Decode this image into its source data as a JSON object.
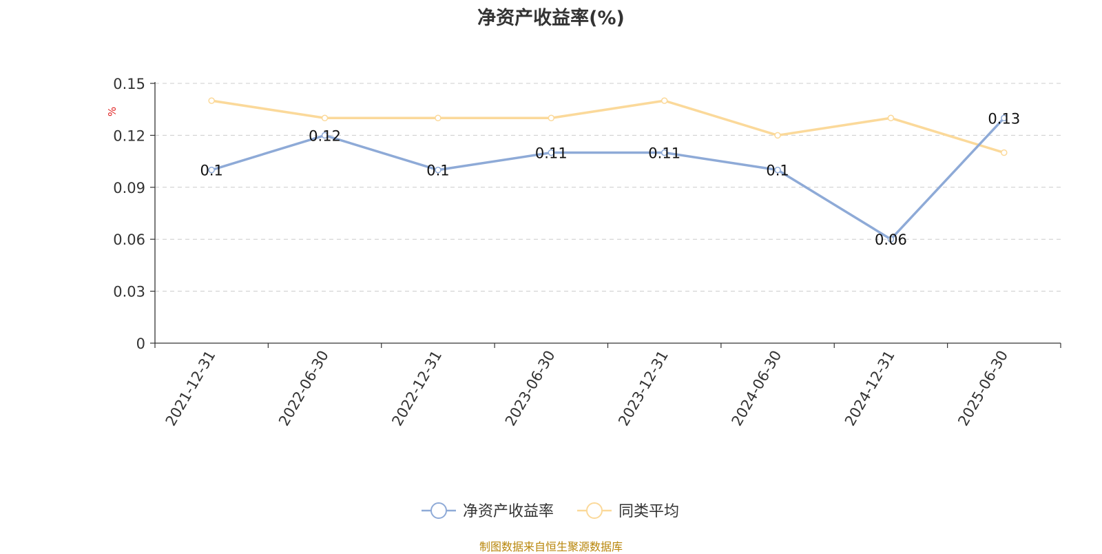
{
  "chart_data": {
    "type": "line",
    "title": "净资产收益率(%)",
    "ylabel": "%",
    "categories": [
      "2021-12-31",
      "2022-06-30",
      "2022-12-31",
      "2023-06-30",
      "2023-12-31",
      "2024-06-30",
      "2024-12-31",
      "2025-06-30"
    ],
    "ylim": [
      0,
      0.15
    ],
    "yticks": [
      "0",
      "0.03",
      "0.06",
      "0.09",
      "0.12",
      "0.15"
    ],
    "grid": true,
    "legend_position": "bottom",
    "series": [
      {
        "name": "净资产收益率",
        "color": "#8eaad7",
        "values": [
          0.1,
          0.12,
          0.1,
          0.11,
          0.11,
          0.1,
          0.06,
          0.13
        ],
        "labels": [
          "0.1",
          "0.12",
          "0.1",
          "0.11",
          "0.11",
          "0.1",
          "0.06",
          "0.13"
        ]
      },
      {
        "name": "同类平均",
        "color": "#fbd99a",
        "values": [
          0.14,
          0.13,
          0.13,
          0.13,
          0.14,
          0.12,
          0.13,
          0.11
        ]
      }
    ]
  },
  "source": "制图数据来自恒生聚源数据库"
}
